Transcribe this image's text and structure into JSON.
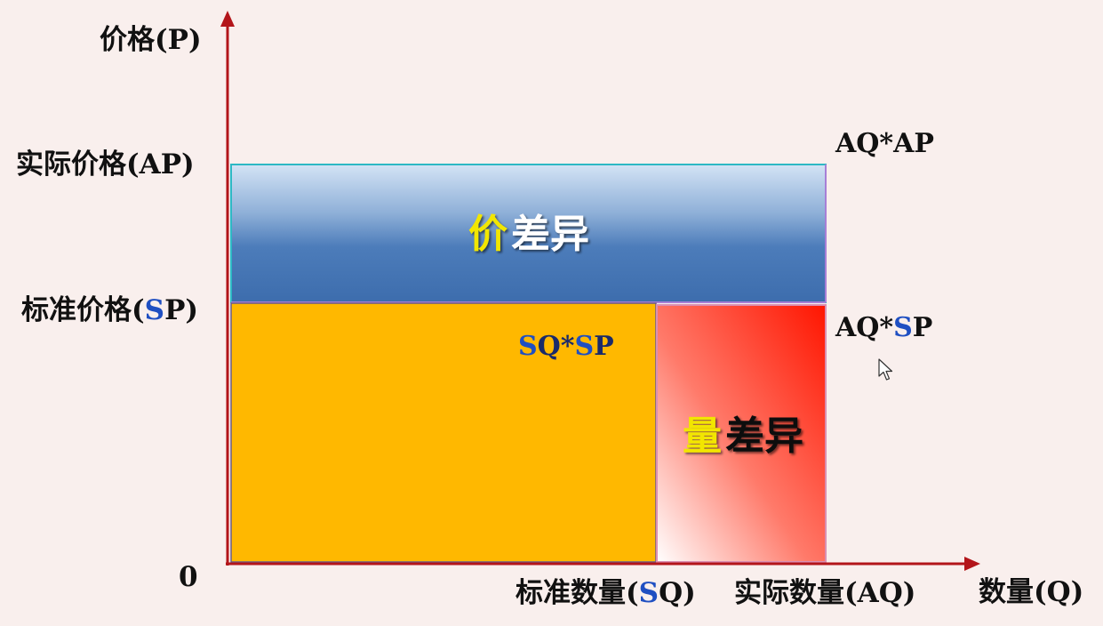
{
  "axes": {
    "y_label": "价格(P)",
    "x_label": "数量(Q)",
    "origin": "0"
  },
  "y_ticks": {
    "actual_price": {
      "prefix": "实际价格(",
      "highlight": "",
      "suffix": "AP)"
    },
    "standard_price": {
      "prefix": "标准价格(",
      "highlight": "S",
      "suffix": "P)"
    }
  },
  "x_ticks": {
    "standard_quantity": {
      "prefix": "标准数量(",
      "highlight": "S",
      "suffix": "Q)"
    },
    "actual_quantity": {
      "prefix": "实际数量(",
      "highlight": "",
      "suffix": "AQ)"
    }
  },
  "corner_labels": {
    "aq_ap": {
      "prefix": "AQ*AP"
    },
    "aq_sp": {
      "prefix": "AQ*",
      "highlight": "S",
      "suffix": "P"
    },
    "sq_sp": {
      "h1": "S",
      "mid": "Q*",
      "h2": "S",
      "suffix": "P"
    }
  },
  "regions": {
    "price_variance": {
      "accent": "价",
      "rest": "差异"
    },
    "quantity_variance": {
      "accent": "量",
      "rest": "差异"
    }
  },
  "colors": {
    "axis": "#b3151a",
    "price_box_top": "#cfe1f4",
    "price_box_bottom": "#3f6fae",
    "price_box_border": "#2db8c4",
    "standard_box": "#ffb800",
    "quantity_box_start": "#ffffff",
    "quantity_box_end": "#ff1a00",
    "accent_text": "#f2e600",
    "highlight_text": "#1f4fc2"
  },
  "icons": {
    "cursor": "mouse-pointer-icon"
  }
}
